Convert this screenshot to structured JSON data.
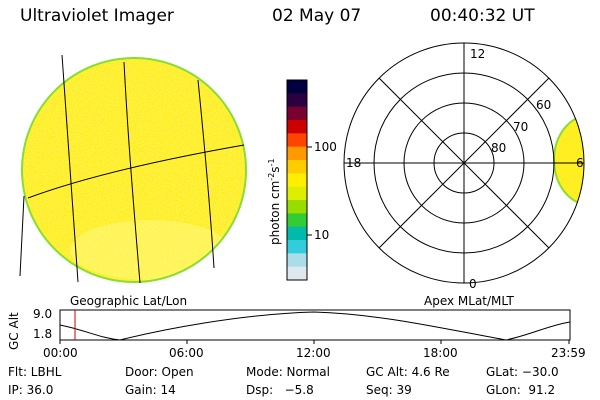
{
  "header": {
    "instrument": "Ultraviolet Imager",
    "date": "02 May 07",
    "time": "00:40:32 UT"
  },
  "geo_panel": {
    "label": "Geographic Lat/Lon"
  },
  "polar_panel": {
    "label": "Apex MLat/MLT",
    "mlt_labels": [
      "12",
      "18",
      "6",
      "0"
    ],
    "lat_labels": [
      "60",
      "70",
      "80"
    ]
  },
  "colorbar": {
    "unit_text": "photon cm",
    "unit_exp1": "-2",
    "unit_mid": "s",
    "unit_exp2": "-1",
    "tick_labels": [
      "100",
      "10"
    ],
    "colors": [
      "#000040",
      "#2a0040",
      "#7a0030",
      "#cc0000",
      "#ff4400",
      "#ff9900",
      "#ffcc00",
      "#ffee00",
      "#ddee00",
      "#99dd00",
      "#33cc33",
      "#00bbaa",
      "#33ccdd",
      "#aadde8",
      "#dfe8ee"
    ]
  },
  "gc_alt_panel": {
    "ylabel": "GC Alt",
    "y_ticks": [
      "9.0",
      "1.8"
    ],
    "x_ticks": [
      "00:00",
      "06:00",
      "12:00",
      "18:00",
      "23:59"
    ],
    "marker_time": "00:40"
  },
  "footer": {
    "flt": "Flt: LBHL",
    "door": "Door: Open",
    "mode": "Mode: Normal",
    "gcalt": "GC Alt: 4.6 Re",
    "glat": "GLat: −30.0",
    "ip": "IP: 36.0",
    "gain": "Gain: 14",
    "dsp": "Dsp:   −5.8",
    "seq": "Seq: 39",
    "glon": "GLon:  91.2"
  },
  "colors": {
    "disk_fill": "#ffee22",
    "disk_rim": "#88dd33",
    "marker": "#cc0000"
  }
}
